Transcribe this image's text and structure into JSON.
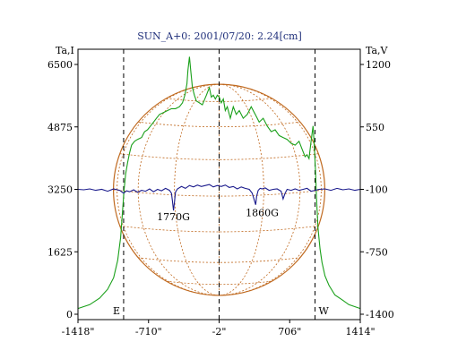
{
  "chart_data": {
    "type": "line",
    "title": "SUN_A+0: 2001/07/20: 2.24[cm]",
    "left_axis_label": "Ta,I",
    "right_axis_label": "Ta,V",
    "x_ticks": [
      -1418,
      -710,
      -2,
      706,
      1414
    ],
    "x_tick_labels": [
      "-1418\"",
      "-710\"",
      "-2\"",
      "706\"",
      "1414\""
    ],
    "xlim": [
      -1418,
      1414
    ],
    "y_left_ticks": [
      0,
      1625,
      3250,
      4875,
      6500
    ],
    "y_left_tick_labels": [
      "0",
      "1625",
      "3250",
      "4875",
      "6500"
    ],
    "ylim_left": [
      0,
      6500
    ],
    "y_right_ticks": [
      -1400,
      -750,
      -100,
      550,
      1200
    ],
    "y_right_tick_labels": [
      "-1400",
      "-750",
      "-100",
      "550",
      "1200"
    ],
    "ylim_right": [
      -1400,
      1200
    ],
    "limb_markers": [
      {
        "label": "E",
        "x": -960
      },
      {
        "label": "W",
        "x": 960
      }
    ],
    "center_marker_x": -2,
    "annotations": [
      {
        "text": "1770G",
        "x": -460,
        "y": 2450
      },
      {
        "text": "1860G",
        "x": 430,
        "y": 2550
      }
    ],
    "series": [
      {
        "axis": "left",
        "color": "#1aa01a",
        "x": [
          -1418,
          -1300,
          -1200,
          -1120,
          -1060,
          -1020,
          -990,
          -970,
          -955,
          -940,
          -920,
          -900,
          -880,
          -850,
          -820,
          -780,
          -750,
          -720,
          -690,
          -660,
          -630,
          -600,
          -560,
          -520,
          -480,
          -440,
          -400,
          -370,
          -345,
          -325,
          -315,
          -300,
          -285,
          -270,
          -250,
          -230,
          -200,
          -170,
          -130,
          -100,
          -80,
          -60,
          -40,
          -20,
          0,
          20,
          40,
          60,
          80,
          110,
          140,
          170,
          200,
          240,
          280,
          320,
          360,
          400,
          440,
          480,
          520,
          560,
          600,
          640,
          680,
          720,
          760,
          800,
          830,
          860,
          880,
          900,
          920,
          940,
          955,
          965,
          975,
          990,
          1010,
          1030,
          1060,
          1100,
          1160,
          1230,
          1300,
          1414
        ],
        "y": [
          150,
          250,
          420,
          650,
          950,
          1400,
          2000,
          2700,
          3250,
          3650,
          3950,
          4200,
          4400,
          4500,
          4550,
          4600,
          4750,
          4800,
          4900,
          5000,
          5100,
          5200,
          5250,
          5300,
          5350,
          5350,
          5400,
          5500,
          5700,
          6000,
          6350,
          6700,
          6300,
          5900,
          5700,
          5550,
          5500,
          5450,
          5700,
          5900,
          5650,
          5700,
          5600,
          5700,
          5650,
          5500,
          5600,
          5300,
          5400,
          5100,
          5400,
          5200,
          5300,
          5100,
          5200,
          5400,
          5200,
          5000,
          5100,
          4900,
          4750,
          4800,
          4650,
          4600,
          4550,
          4450,
          4400,
          4500,
          4300,
          4100,
          4150,
          4050,
          4500,
          4900,
          4300,
          3700,
          3000,
          2250,
          1700,
          1350,
          1000,
          750,
          500,
          380,
          250,
          150
        ]
      },
      {
        "axis": "right",
        "color": "#1a1a8c",
        "x": [
          -1418,
          -1360,
          -1300,
          -1240,
          -1180,
          -1120,
          -1060,
          -1000,
          -960,
          -930,
          -900,
          -860,
          -820,
          -780,
          -740,
          -700,
          -660,
          -620,
          -580,
          -540,
          -500,
          -480,
          -470,
          -460,
          -450,
          -440,
          -420,
          -380,
          -340,
          -300,
          -260,
          -220,
          -180,
          -140,
          -100,
          -60,
          -20,
          20,
          60,
          100,
          140,
          180,
          220,
          260,
          300,
          330,
          350,
          365,
          375,
          390,
          410,
          430,
          460,
          500,
          540,
          580,
          620,
          640,
          660,
          680,
          720,
          760,
          800,
          840,
          880,
          920,
          960,
          1000,
          1060,
          1120,
          1180,
          1240,
          1300,
          1360,
          1414
        ],
        "y": [
          -100,
          -105,
          -95,
          -110,
          -100,
          -120,
          -95,
          -110,
          -140,
          -115,
          -125,
          -105,
          -130,
          -110,
          -120,
          -95,
          -125,
          -100,
          -115,
          -90,
          -110,
          -140,
          -220,
          -320,
          -230,
          -130,
          -95,
          -70,
          -90,
          -60,
          -75,
          -55,
          -70,
          -60,
          -50,
          -75,
          -60,
          -70,
          -55,
          -80,
          -70,
          -95,
          -75,
          -90,
          -100,
          -140,
          -210,
          -260,
          -170,
          -110,
          -90,
          -95,
          -85,
          -110,
          -100,
          -95,
          -120,
          -200,
          -140,
          -100,
          -110,
          -95,
          -110,
          -100,
          -90,
          -120,
          -110,
          -100,
          -95,
          -110,
          -90,
          -105,
          -95,
          -110,
          -100
        ]
      }
    ],
    "sun_disk": {
      "center_x": -2,
      "radius": 1060,
      "grid_color": "#c06a20"
    }
  }
}
